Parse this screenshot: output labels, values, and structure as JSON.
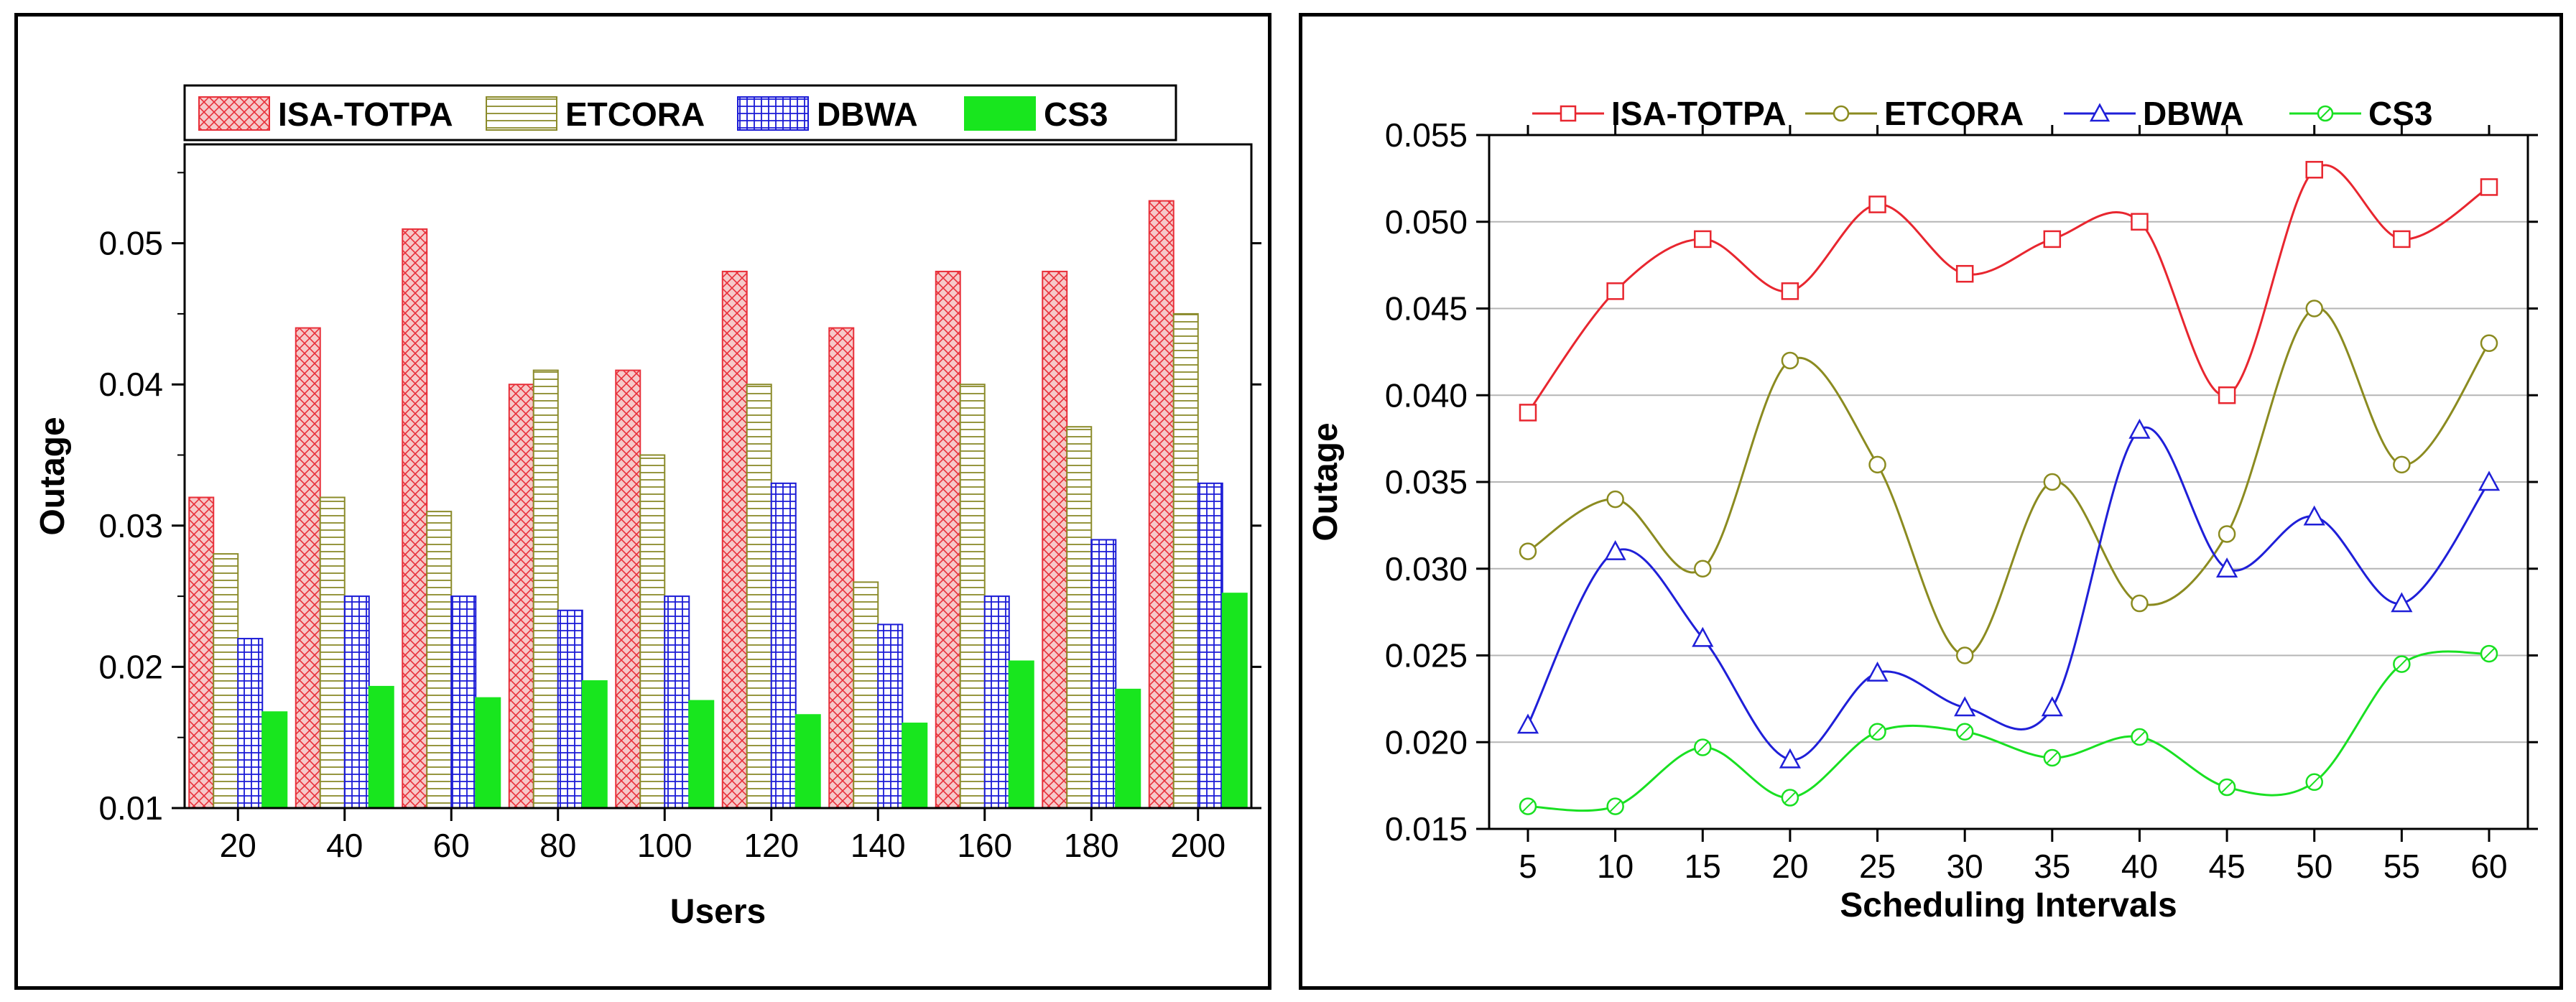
{
  "chart_data": [
    {
      "type": "bar",
      "xlabel": "Users",
      "ylabel": "Outage",
      "ylim": [
        0.01,
        0.057
      ],
      "yticks": [
        "0.01",
        "0.02",
        "0.03",
        "0.04",
        "0.05"
      ],
      "categories": [
        "20",
        "40",
        "60",
        "80",
        "100",
        "120",
        "140",
        "160",
        "180",
        "200"
      ],
      "legend_position": "top",
      "series": [
        {
          "name": "ISA-TOTPA",
          "color": "#e8303a",
          "fill": "#f6c9c9",
          "pattern": "crosshatch",
          "values": [
            0.032,
            0.044,
            0.051,
            0.04,
            0.041,
            0.048,
            0.044,
            0.048,
            0.048,
            0.053
          ]
        },
        {
          "name": "ETCORA",
          "color": "#8b8b2a",
          "fill": "#ffffff",
          "pattern": "horizontal",
          "values": [
            0.028,
            0.032,
            0.031,
            0.041,
            0.035,
            0.04,
            0.026,
            0.04,
            0.037,
            0.045
          ]
        },
        {
          "name": "DBWA",
          "color": "#1a1ad6",
          "fill": "#ffffff",
          "pattern": "grid",
          "values": [
            0.022,
            0.025,
            0.025,
            0.024,
            0.025,
            0.033,
            0.023,
            0.025,
            0.029,
            0.033
          ]
        },
        {
          "name": "CS3",
          "color": "#18e61e",
          "fill": "#18e61e",
          "pattern": "solid",
          "values": [
            0.0168,
            0.0186,
            0.0178,
            0.019,
            0.0176,
            0.0166,
            0.016,
            0.0204,
            0.0184,
            0.0252
          ]
        }
      ]
    },
    {
      "type": "line",
      "xlabel": "Scheduling Intervals",
      "ylabel": "Outage",
      "ylim": [
        0.015,
        0.055
      ],
      "yticks": [
        "0.015",
        "0.020",
        "0.025",
        "0.030",
        "0.035",
        "0.040",
        "0.045",
        "0.050",
        "0.055"
      ],
      "x": [
        5,
        10,
        15,
        20,
        25,
        30,
        35,
        40,
        45,
        50,
        55,
        60
      ],
      "xticks": [
        "5",
        "10",
        "15",
        "20",
        "25",
        "30",
        "35",
        "40",
        "45",
        "50",
        "55",
        "60"
      ],
      "grid": true,
      "legend_position": "top",
      "series": [
        {
          "name": "ISA-TOTPA",
          "color": "#e8262f",
          "marker": "square",
          "values": [
            0.039,
            0.046,
            0.049,
            0.046,
            0.051,
            0.047,
            0.049,
            0.05,
            0.04,
            0.053,
            0.049,
            0.052
          ]
        },
        {
          "name": "ETCORA",
          "color": "#8b8b20",
          "marker": "circle",
          "values": [
            0.031,
            0.034,
            0.03,
            0.042,
            0.036,
            0.025,
            0.035,
            0.028,
            0.032,
            0.045,
            0.036,
            0.043
          ]
        },
        {
          "name": "DBWA",
          "color": "#1f1fd8",
          "marker": "triangle",
          "values": [
            0.021,
            0.031,
            0.026,
            0.019,
            0.024,
            0.022,
            0.022,
            0.038,
            0.03,
            0.033,
            0.028,
            0.035
          ]
        },
        {
          "name": "CS3",
          "color": "#19e022",
          "marker": "circle-cross",
          "values": [
            0.0163,
            0.0163,
            0.0197,
            0.0168,
            0.0206,
            0.0206,
            0.0191,
            0.0203,
            0.0174,
            0.0177,
            0.0245,
            0.0251
          ]
        }
      ]
    }
  ]
}
